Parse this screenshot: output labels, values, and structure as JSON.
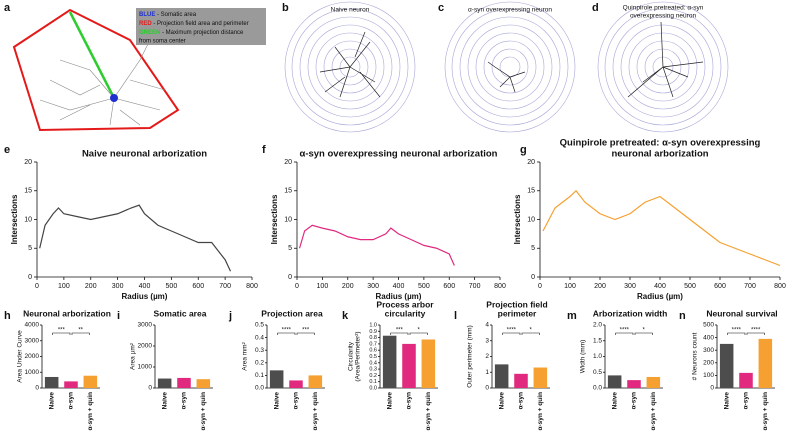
{
  "figure_panels": [
    {
      "panel": "a",
      "legend": [
        {
          "key": "BLUE",
          "color": "#1f2fd0",
          "text": " - Somatic area"
        },
        {
          "key": "RED",
          "color": "#e41a1a",
          "text": " - Projection field area and perimeter"
        },
        {
          "key": "GREEN",
          "color": "#2ecc2e",
          "text": " - Maximum projection distance",
          "continuation": "from soma center"
        }
      ]
    },
    {
      "panel": "b",
      "title": [
        "Naive neuron"
      ]
    },
    {
      "panel": "c",
      "title": [
        "α-syn overexpressing neuron"
      ]
    },
    {
      "panel": "d",
      "title": [
        "Quinpirole pretreated: α-syn",
        "overexpressing neuron"
      ]
    }
  ],
  "chart_data": [
    {
      "type": "line",
      "panel": "e",
      "title": [
        "Naive neuronal arborization"
      ],
      "xlabel": "Radius (µm)",
      "ylabel": [
        "Intersections"
      ],
      "xlim": [
        0,
        800
      ],
      "xticks": [
        0,
        100,
        200,
        300,
        400,
        500,
        600,
        700,
        800
      ],
      "ylim": [
        0,
        20
      ],
      "yticks": [
        0,
        5,
        10,
        15,
        20
      ],
      "series": [
        {
          "color": "#444444",
          "x": [
            10,
            30,
            60,
            80,
            100,
            150,
            200,
            250,
            300,
            350,
            380,
            400,
            450,
            500,
            550,
            600,
            650,
            700,
            720
          ],
          "values": [
            5,
            9,
            11,
            12,
            11,
            10.5,
            10,
            10.5,
            11,
            12,
            12.5,
            11,
            9,
            8,
            7,
            6,
            6,
            3,
            1
          ]
        }
      ]
    },
    {
      "type": "line",
      "panel": "f",
      "title": [
        "α-syn overexpressing neuronal arborization"
      ],
      "xlabel": "Radius (µm)",
      "ylabel": [
        "Intersections"
      ],
      "xlim": [
        0,
        800
      ],
      "xticks": [
        0,
        100,
        200,
        300,
        400,
        500,
        600,
        700,
        800
      ],
      "ylim": [
        0,
        20
      ],
      "yticks": [
        0,
        5,
        10,
        15,
        20
      ],
      "series": [
        {
          "color": "#e0297f",
          "x": [
            10,
            30,
            60,
            100,
            150,
            200,
            250,
            300,
            350,
            370,
            400,
            450,
            500,
            550,
            600,
            620
          ],
          "values": [
            5,
            8,
            9,
            8.5,
            8,
            7,
            6.5,
            6.5,
            7.5,
            8.5,
            7.5,
            6.5,
            5.5,
            5,
            4,
            2
          ]
        }
      ]
    },
    {
      "type": "line",
      "panel": "g",
      "title": [
        "Quinpirole pretreated: α-syn overexpressing",
        "neuronal arborization"
      ],
      "xlabel": "Radius (µm)",
      "ylabel": [
        "Intersections"
      ],
      "xlim": [
        0,
        800
      ],
      "xticks": [
        0,
        100,
        200,
        300,
        400,
        500,
        600,
        700,
        800
      ],
      "ylim": [
        0,
        20
      ],
      "yticks": [
        0,
        5,
        10,
        15,
        20
      ],
      "series": [
        {
          "color": "#f5a030",
          "x": [
            10,
            50,
            100,
            120,
            150,
            200,
            250,
            300,
            350,
            400,
            450,
            500,
            550,
            600,
            650,
            700,
            750,
            800
          ],
          "values": [
            8,
            12,
            14,
            15,
            13,
            11,
            10,
            11,
            13,
            14,
            12,
            10,
            8,
            6,
            5,
            4,
            3,
            2
          ]
        }
      ]
    },
    {
      "type": "bar",
      "panel": "h",
      "title": [
        "Neuronal arborization"
      ],
      "ylabel": [
        "Area Under Curve"
      ],
      "categories": [
        "Naive",
        "α-syn",
        "α-syn + quin"
      ],
      "colors": [
        "#4d4d4d",
        "#e0297f",
        "#f5a030"
      ],
      "values": [
        700,
        420,
        780
      ],
      "ylim": [
        0,
        4000
      ],
      "yticks": [
        0,
        1000,
        2000,
        3000,
        4000
      ],
      "comparisons": [
        {
          "label": "***",
          "between": [
            0,
            1
          ]
        },
        {
          "label": "**",
          "between": [
            1,
            2
          ]
        }
      ]
    },
    {
      "type": "bar",
      "panel": "i",
      "title": [
        "Somatic area"
      ],
      "ylabel": [
        "Area µm²"
      ],
      "categories": [
        "Naive",
        "α-syn",
        "α-syn + quin"
      ],
      "colors": [
        "#4d4d4d",
        "#e0297f",
        "#f5a030"
      ],
      "values": [
        450,
        480,
        420
      ],
      "ylim": [
        0,
        3000
      ],
      "yticks": [
        0,
        1000,
        2000,
        3000
      ],
      "comparisons": []
    },
    {
      "type": "bar",
      "panel": "j",
      "title": [
        "Projection area"
      ],
      "ylabel": [
        "Area mm²"
      ],
      "categories": [
        "Naive",
        "α-syn",
        "α-syn + quin"
      ],
      "colors": [
        "#4d4d4d",
        "#e0297f",
        "#f5a030"
      ],
      "values": [
        0.14,
        0.06,
        0.1
      ],
      "ylim": [
        0,
        0.5
      ],
      "yticks": [
        {
          "value": 0,
          "label": "0.0"
        },
        0.1,
        0.2,
        0.3,
        0.4,
        0.5
      ],
      "comparisons": [
        {
          "label": "****",
          "between": [
            0,
            1
          ]
        },
        {
          "label": "***",
          "between": [
            1,
            2
          ]
        }
      ]
    },
    {
      "type": "bar",
      "panel": "k",
      "title": [
        "Process arbor",
        "circularity"
      ],
      "ylabel": [
        "Circularity",
        "(Area/Perimeter²)"
      ],
      "categories": [
        "Naive",
        "α-syn",
        "α-syn + quin"
      ],
      "colors": [
        "#4d4d4d",
        "#e0297f",
        "#f5a030"
      ],
      "values": [
        0.83,
        0.7,
        0.77
      ],
      "ylim": [
        0,
        1
      ],
      "yticks": [
        {
          "value": 0,
          "label": "0.0"
        },
        0.1,
        0.2,
        0.3,
        0.4,
        0.5,
        0.6,
        0.7,
        0.8,
        0.9,
        {
          "value": 1,
          "label": "1.0"
        }
      ],
      "comparisons": [
        {
          "label": "***",
          "between": [
            0,
            1
          ]
        },
        {
          "label": "*",
          "between": [
            1,
            2
          ]
        }
      ]
    },
    {
      "type": "bar",
      "panel": "l",
      "title": [
        "Projection field",
        "perimeter"
      ],
      "ylabel": [
        "Outer perimeter (mm)"
      ],
      "categories": [
        "Naive",
        "α-syn",
        "α-syn + quin"
      ],
      "colors": [
        "#4d4d4d",
        "#e0297f",
        "#f5a030"
      ],
      "values": [
        1.5,
        0.9,
        1.3
      ],
      "ylim": [
        0,
        4
      ],
      "yticks": [
        0,
        1,
        2,
        3,
        4
      ],
      "comparisons": [
        {
          "label": "****",
          "between": [
            0,
            1
          ]
        },
        {
          "label": "*",
          "between": [
            1,
            2
          ]
        }
      ]
    },
    {
      "type": "bar",
      "panel": "m",
      "title": [
        "Arborization width"
      ],
      "ylabel": [
        "Width (mm)"
      ],
      "categories": [
        "Naive",
        "α-syn",
        "α-syn + quin"
      ],
      "colors": [
        "#4d4d4d",
        "#e0297f",
        "#f5a030"
      ],
      "values": [
        0.4,
        0.25,
        0.35
      ],
      "ylim": [
        0,
        2
      ],
      "yticks": [
        {
          "value": 0,
          "label": "0.0"
        },
        0.5,
        {
          "value": 1,
          "label": "1.0"
        },
        1.5,
        {
          "value": 2,
          "label": "2.0"
        }
      ],
      "comparisons": [
        {
          "label": "****",
          "between": [
            0,
            1
          ]
        },
        {
          "label": "*",
          "between": [
            1,
            2
          ]
        }
      ]
    },
    {
      "type": "bar",
      "panel": "n",
      "title": [
        "Neuronal survival"
      ],
      "ylabel": [
        "# Neurons count"
      ],
      "categories": [
        "Naive",
        "α-syn",
        "α-syn + quin"
      ],
      "colors": [
        "#4d4d4d",
        "#e0297f",
        "#f5a030"
      ],
      "values": [
        350,
        120,
        390
      ],
      "ylim": [
        0,
        500
      ],
      "yticks": [
        0,
        100,
        200,
        300,
        400,
        500
      ],
      "comparisons": [
        {
          "label": "****",
          "between": [
            0,
            1
          ]
        },
        {
          "label": "****",
          "between": [
            1,
            2
          ]
        }
      ]
    }
  ]
}
